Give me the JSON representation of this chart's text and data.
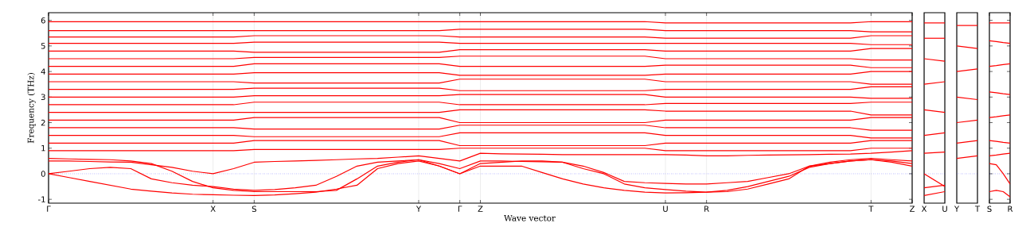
{
  "chart_data": [
    {
      "type": "line",
      "xlabel": "Wave vector",
      "ylabel": "Frequency (THz)",
      "ylim": [
        -1.15,
        6.3
      ],
      "categories": [
        "Γ",
        null,
        null,
        null,
        null,
        null,
        null,
        null,
        "X",
        null,
        "S",
        null,
        null,
        null,
        null,
        null,
        null,
        null,
        "Y",
        null,
        "Γ",
        "Z",
        null,
        null,
        null,
        null,
        null,
        null,
        null,
        null,
        "U",
        null,
        "R",
        null,
        null,
        null,
        null,
        null,
        null,
        null,
        "T",
        null,
        "Z"
      ],
      "yticks": [
        -1,
        0,
        1,
        2,
        3,
        4,
        5,
        6
      ],
      "grid": "x",
      "marker": "none",
      "line_style": "solid",
      "ref_lines": [
        {
          "axis": "y",
          "value": 0,
          "color": "#0000ff",
          "line_style": "dotted"
        }
      ],
      "series": [
        {
          "color": "#ff0000",
          "values": [
            0,
            -0.15,
            -0.3,
            -0.45,
            -0.6,
            -0.68,
            -0.75,
            -0.8,
            -0.82,
            -0.84,
            -0.85,
            -0.83,
            -0.78,
            -0.72,
            -0.6,
            -0.45,
            0.2,
            0.4,
            0.5,
            0.3,
            0,
            0.3,
            0.3,
            0.3,
            0.05,
            -0.2,
            -0.4,
            -0.55,
            -0.65,
            -0.72,
            -0.75,
            -0.74,
            -0.72,
            -0.65,
            -0.5,
            -0.3,
            -0.1,
            0.25,
            0.4,
            0.5,
            0.55,
            0.5,
            0.4
          ]
        },
        {
          "color": "#ff0000",
          "values": [
            0,
            0.1,
            0.2,
            0.25,
            0.2,
            -0.2,
            -0.35,
            -0.45,
            -0.5,
            -0.6,
            -0.65,
            -0.62,
            -0.55,
            -0.45,
            -0.1,
            0.3,
            0.45,
            0.5,
            0.55,
            0.3,
            0,
            0.4,
            0.45,
            0.5,
            0.5,
            0.45,
            0.3,
            0.05,
            -0.3,
            -0.35,
            -0.38,
            -0.4,
            -0.4,
            -0.35,
            -0.3,
            -0.15,
            0,
            0.3,
            0.45,
            0.55,
            0.6,
            0.55,
            0.5
          ]
        },
        {
          "color": "#ff0000",
          "values": [
            0.5,
            0.5,
            0.48,
            0.46,
            0.45,
            0.35,
            0.25,
            0.1,
            0,
            0.2,
            0.45,
            0.48,
            0.5,
            0.52,
            0.55,
            0.58,
            0.6,
            0.65,
            0.7,
            0.6,
            0.5,
            0.8,
            0.78,
            0.77,
            0.76,
            0.75,
            0.75,
            0.75,
            0.75,
            0.75,
            0.75,
            0.73,
            0.7,
            0.7,
            0.72,
            0.73,
            0.74,
            0.75,
            0.76,
            0.77,
            0.8,
            0.85,
            0.9
          ]
        },
        {
          "color": "#ff0000",
          "values": [
            0.6,
            0.58,
            0.56,
            0.55,
            0.5,
            0.4,
            0.1,
            -0.3,
            -0.55,
            -0.65,
            -0.7,
            -0.7,
            -0.7,
            -0.7,
            -0.65,
            -0.2,
            0.3,
            0.45,
            0.55,
            0.4,
            0.2,
            0.5,
            0.5,
            0.48,
            0.47,
            0.45,
            0.2,
            0,
            -0.4,
            -0.55,
            -0.62,
            -0.68,
            -0.72,
            -0.7,
            -0.6,
            -0.4,
            -0.2,
            0.3,
            0.4,
            0.5,
            0.55,
            0.45,
            0.3
          ]
        },
        {
          "color": "#ff0000",
          "values": [
            0.9,
            0.9,
            0.9,
            0.9,
            0.9,
            0.9,
            0.9,
            0.9,
            0.9,
            0.9,
            0.95,
            0.95,
            0.95,
            0.95,
            0.95,
            0.95,
            0.95,
            0.95,
            0.95,
            0.95,
            1.0,
            1.0,
            1.0,
            1.0,
            1.0,
            1.0,
            1.0,
            1.0,
            1.0,
            1.0,
            0.9,
            0.9,
            0.9,
            0.9,
            0.9,
            0.9,
            0.9,
            0.9,
            0.9,
            0.9,
            1.0,
            1.0,
            1.0
          ]
        },
        {
          "color": "#ff0000",
          "values": [
            1.2,
            1.2,
            1.2,
            1.2,
            1.2,
            1.2,
            1.2,
            1.2,
            1.2,
            1.2,
            1.3,
            1.3,
            1.3,
            1.3,
            1.3,
            1.3,
            1.3,
            1.3,
            1.3,
            1.3,
            1.1,
            1.1,
            1.1,
            1.1,
            1.1,
            1.1,
            1.1,
            1.1,
            1.1,
            1.1,
            1.2,
            1.2,
            1.2,
            1.2,
            1.2,
            1.2,
            1.2,
            1.2,
            1.2,
            1.2,
            1.3,
            1.3,
            1.3
          ]
        },
        {
          "color": "#ff0000",
          "values": [
            1.5,
            1.5,
            1.5,
            1.5,
            1.5,
            1.5,
            1.5,
            1.5,
            1.5,
            1.5,
            1.45,
            1.45,
            1.45,
            1.45,
            1.45,
            1.45,
            1.45,
            1.45,
            1.45,
            1.45,
            1.6,
            1.6,
            1.6,
            1.6,
            1.6,
            1.6,
            1.6,
            1.6,
            1.6,
            1.6,
            1.5,
            1.5,
            1.5,
            1.5,
            1.5,
            1.5,
            1.5,
            1.5,
            1.5,
            1.5,
            1.4,
            1.4,
            1.4
          ]
        },
        {
          "color": "#ff0000",
          "values": [
            1.8,
            1.8,
            1.8,
            1.8,
            1.8,
            1.8,
            1.8,
            1.8,
            1.8,
            1.8,
            1.75,
            1.75,
            1.75,
            1.75,
            1.75,
            1.75,
            1.75,
            1.75,
            1.75,
            1.75,
            1.9,
            1.9,
            1.9,
            1.9,
            1.9,
            1.9,
            1.9,
            1.9,
            1.9,
            1.9,
            1.8,
            1.8,
            1.8,
            1.8,
            1.8,
            1.8,
            1.8,
            1.8,
            1.8,
            1.8,
            1.7,
            1.7,
            1.7
          ]
        },
        {
          "color": "#ff0000",
          "values": [
            2.1,
            2.1,
            2.1,
            2.1,
            2.1,
            2.1,
            2.1,
            2.1,
            2.1,
            2.1,
            2.2,
            2.2,
            2.2,
            2.2,
            2.2,
            2.2,
            2.2,
            2.2,
            2.2,
            2.2,
            2.0,
            2.0,
            2.0,
            2.0,
            2.0,
            2.0,
            2.0,
            2.0,
            2.0,
            2.0,
            2.1,
            2.1,
            2.1,
            2.1,
            2.1,
            2.1,
            2.1,
            2.1,
            2.1,
            2.1,
            2.2,
            2.2,
            2.2
          ]
        },
        {
          "color": "#ff0000",
          "values": [
            2.4,
            2.4,
            2.4,
            2.4,
            2.4,
            2.4,
            2.4,
            2.4,
            2.4,
            2.4,
            2.4,
            2.4,
            2.4,
            2.4,
            2.4,
            2.4,
            2.4,
            2.4,
            2.4,
            2.4,
            2.5,
            2.5,
            2.5,
            2.5,
            2.5,
            2.5,
            2.5,
            2.5,
            2.5,
            2.5,
            2.45,
            2.45,
            2.45,
            2.45,
            2.45,
            2.45,
            2.45,
            2.45,
            2.45,
            2.45,
            2.3,
            2.3,
            2.3
          ]
        },
        {
          "color": "#ff0000",
          "values": [
            2.7,
            2.7,
            2.7,
            2.7,
            2.7,
            2.7,
            2.7,
            2.7,
            2.7,
            2.7,
            2.8,
            2.8,
            2.8,
            2.8,
            2.8,
            2.8,
            2.8,
            2.8,
            2.8,
            2.8,
            2.7,
            2.7,
            2.7,
            2.7,
            2.7,
            2.7,
            2.7,
            2.7,
            2.7,
            2.7,
            2.75,
            2.75,
            2.75,
            2.75,
            2.75,
            2.75,
            2.75,
            2.75,
            2.75,
            2.75,
            2.8,
            2.8,
            2.8
          ]
        },
        {
          "color": "#ff0000",
          "values": [
            3.0,
            3.0,
            3.0,
            3.0,
            3.0,
            3.0,
            3.0,
            3.0,
            3.0,
            3.0,
            3.05,
            3.05,
            3.05,
            3.05,
            3.05,
            3.05,
            3.05,
            3.05,
            3.05,
            3.05,
            3.1,
            3.1,
            3.1,
            3.1,
            3.1,
            3.1,
            3.1,
            3.1,
            3.1,
            3.1,
            3.0,
            3.0,
            3.0,
            3.0,
            3.0,
            3.0,
            3.0,
            3.0,
            3.0,
            3.0,
            2.95,
            2.95,
            2.95
          ]
        },
        {
          "color": "#ff0000",
          "values": [
            3.3,
            3.3,
            3.3,
            3.3,
            3.3,
            3.3,
            3.3,
            3.3,
            3.3,
            3.3,
            3.35,
            3.35,
            3.35,
            3.35,
            3.35,
            3.35,
            3.35,
            3.35,
            3.35,
            3.35,
            3.25,
            3.25,
            3.25,
            3.25,
            3.25,
            3.25,
            3.25,
            3.25,
            3.25,
            3.25,
            3.3,
            3.3,
            3.3,
            3.3,
            3.3,
            3.3,
            3.3,
            3.3,
            3.3,
            3.3,
            3.4,
            3.4,
            3.4
          ]
        },
        {
          "color": "#ff0000",
          "values": [
            3.6,
            3.6,
            3.6,
            3.6,
            3.6,
            3.6,
            3.6,
            3.6,
            3.6,
            3.6,
            3.55,
            3.55,
            3.55,
            3.55,
            3.55,
            3.55,
            3.55,
            3.55,
            3.55,
            3.55,
            3.7,
            3.7,
            3.7,
            3.7,
            3.7,
            3.7,
            3.7,
            3.7,
            3.7,
            3.7,
            3.6,
            3.6,
            3.6,
            3.6,
            3.6,
            3.6,
            3.6,
            3.6,
            3.6,
            3.6,
            3.5,
            3.5,
            3.5
          ]
        },
        {
          "color": "#ff0000",
          "values": [
            3.9,
            3.9,
            3.9,
            3.9,
            3.9,
            3.9,
            3.9,
            3.9,
            3.9,
            3.9,
            3.95,
            3.95,
            3.95,
            3.95,
            3.95,
            3.95,
            3.95,
            3.95,
            3.95,
            3.95,
            3.85,
            3.85,
            3.85,
            3.85,
            3.85,
            3.85,
            3.85,
            3.85,
            3.85,
            3.85,
            3.9,
            3.9,
            3.9,
            3.9,
            3.9,
            3.9,
            3.9,
            3.9,
            3.9,
            3.9,
            4.0,
            4.0,
            4.0
          ]
        },
        {
          "color": "#ff0000",
          "values": [
            4.2,
            4.2,
            4.2,
            4.2,
            4.2,
            4.2,
            4.2,
            4.2,
            4.2,
            4.2,
            4.3,
            4.3,
            4.3,
            4.3,
            4.3,
            4.3,
            4.3,
            4.3,
            4.3,
            4.3,
            4.2,
            4.2,
            4.2,
            4.2,
            4.2,
            4.2,
            4.2,
            4.2,
            4.2,
            4.2,
            4.25,
            4.25,
            4.25,
            4.25,
            4.25,
            4.25,
            4.25,
            4.25,
            4.25,
            4.25,
            4.15,
            4.15,
            4.15
          ]
        },
        {
          "color": "#ff0000",
          "values": [
            4.5,
            4.5,
            4.5,
            4.5,
            4.5,
            4.5,
            4.5,
            4.5,
            4.5,
            4.5,
            4.55,
            4.55,
            4.55,
            4.55,
            4.55,
            4.55,
            4.55,
            4.55,
            4.55,
            4.55,
            4.6,
            4.6,
            4.6,
            4.6,
            4.6,
            4.6,
            4.6,
            4.6,
            4.6,
            4.6,
            4.5,
            4.5,
            4.5,
            4.5,
            4.5,
            4.5,
            4.5,
            4.5,
            4.5,
            4.5,
            4.45,
            4.45,
            4.45
          ]
        },
        {
          "color": "#ff0000",
          "values": [
            4.8,
            4.8,
            4.8,
            4.8,
            4.8,
            4.8,
            4.8,
            4.8,
            4.8,
            4.8,
            4.75,
            4.75,
            4.75,
            4.75,
            4.75,
            4.75,
            4.75,
            4.75,
            4.75,
            4.75,
            4.85,
            4.85,
            4.85,
            4.85,
            4.85,
            4.85,
            4.85,
            4.85,
            4.85,
            4.85,
            4.8,
            4.8,
            4.8,
            4.8,
            4.8,
            4.8,
            4.8,
            4.8,
            4.8,
            4.8,
            4.9,
            4.9,
            4.9
          ]
        },
        {
          "color": "#ff0000",
          "values": [
            5.1,
            5.1,
            5.1,
            5.1,
            5.1,
            5.1,
            5.1,
            5.1,
            5.1,
            5.1,
            5.15,
            5.15,
            5.15,
            5.15,
            5.15,
            5.15,
            5.15,
            5.15,
            5.15,
            5.15,
            5.1,
            5.1,
            5.1,
            5.1,
            5.1,
            5.1,
            5.1,
            5.1,
            5.1,
            5.1,
            5.1,
            5.1,
            5.1,
            5.1,
            5.1,
            5.1,
            5.1,
            5.1,
            5.1,
            5.1,
            5.05,
            5.05,
            5.05
          ]
        },
        {
          "color": "#ff0000",
          "values": [
            5.35,
            5.35,
            5.35,
            5.35,
            5.35,
            5.35,
            5.35,
            5.35,
            5.35,
            5.35,
            5.4,
            5.4,
            5.4,
            5.4,
            5.4,
            5.4,
            5.4,
            5.4,
            5.4,
            5.4,
            5.35,
            5.35,
            5.35,
            5.35,
            5.35,
            5.35,
            5.35,
            5.35,
            5.35,
            5.35,
            5.3,
            5.3,
            5.3,
            5.3,
            5.3,
            5.3,
            5.3,
            5.3,
            5.3,
            5.3,
            5.4,
            5.4,
            5.4
          ]
        },
        {
          "color": "#ff0000",
          "values": [
            5.6,
            5.6,
            5.6,
            5.6,
            5.6,
            5.6,
            5.6,
            5.6,
            5.6,
            5.6,
            5.6,
            5.6,
            5.6,
            5.6,
            5.6,
            5.6,
            5.6,
            5.6,
            5.6,
            5.6,
            5.65,
            5.65,
            5.65,
            5.65,
            5.65,
            5.65,
            5.65,
            5.65,
            5.65,
            5.65,
            5.6,
            5.6,
            5.6,
            5.6,
            5.6,
            5.6,
            5.6,
            5.6,
            5.6,
            5.6,
            5.55,
            5.55,
            5.55
          ]
        },
        {
          "color": "#ff0000",
          "values": [
            5.95,
            5.95,
            5.95,
            5.95,
            5.95,
            5.95,
            5.95,
            5.95,
            5.95,
            5.95,
            5.95,
            5.95,
            5.95,
            5.95,
            5.95,
            5.95,
            5.95,
            5.95,
            5.95,
            5.95,
            5.95,
            5.95,
            5.95,
            5.95,
            5.95,
            5.95,
            5.95,
            5.95,
            5.95,
            5.95,
            5.9,
            5.9,
            5.9,
            5.9,
            5.9,
            5.9,
            5.9,
            5.9,
            5.9,
            5.9,
            5.95,
            5.95,
            5.95
          ]
        }
      ]
    },
    {
      "type": "line",
      "ylim": [
        -1.15,
        6.3
      ],
      "categories": [
        "X",
        "U"
      ],
      "tick_labels": "x",
      "marker": "none",
      "line_style": "solid",
      "ref_lines": [
        {
          "axis": "y",
          "value": 0,
          "color": "#0000ff",
          "line_style": "dotted"
        }
      ],
      "series": [
        {
          "color": "#ff0000",
          "values": [
            0,
            -0.5
          ]
        },
        {
          "color": "#ff0000",
          "values": [
            -0.85,
            -0.7
          ]
        },
        {
          "color": "#ff0000",
          "values": [
            -0.55,
            -0.45
          ]
        },
        {
          "color": "#ff0000",
          "values": [
            0.8,
            0.85
          ]
        },
        {
          "color": "#ff0000",
          "values": [
            1.5,
            1.6
          ]
        },
        {
          "color": "#ff0000",
          "values": [
            2.5,
            2.4
          ]
        },
        {
          "color": "#ff0000",
          "values": [
            3.5,
            3.6
          ]
        },
        {
          "color": "#ff0000",
          "values": [
            4.5,
            4.4
          ]
        },
        {
          "color": "#ff0000",
          "values": [
            5.3,
            5.3
          ]
        },
        {
          "color": "#ff0000",
          "values": [
            5.9,
            5.9
          ]
        }
      ]
    },
    {
      "type": "line",
      "ylim": [
        -1.15,
        6.3
      ],
      "categories": [
        "Y",
        "T"
      ],
      "tick_labels": "x",
      "marker": "none",
      "line_style": "solid",
      "ref_lines": [
        {
          "axis": "y",
          "value": 0,
          "color": "#0000ff",
          "line_style": "dotted"
        }
      ],
      "series": [
        {
          "color": "#ff0000",
          "values": [
            0.6,
            0.7
          ]
        },
        {
          "color": "#ff0000",
          "values": [
            1.2,
            1.3
          ]
        },
        {
          "color": "#ff0000",
          "values": [
            2.0,
            2.1
          ]
        },
        {
          "color": "#ff0000",
          "values": [
            3.0,
            2.9
          ]
        },
        {
          "color": "#ff0000",
          "values": [
            4.0,
            4.1
          ]
        },
        {
          "color": "#ff0000",
          "values": [
            5.0,
            4.9
          ]
        },
        {
          "color": "#ff0000",
          "values": [
            5.8,
            5.8
          ]
        }
      ]
    },
    {
      "type": "line",
      "ylim": [
        -1.15,
        6.3
      ],
      "categories": [
        "S",
        null,
        null,
        "R"
      ],
      "yticks": [
        -1,
        0,
        1,
        2,
        3,
        4,
        5,
        6
      ],
      "tick_labels": "x",
      "marker": "none",
      "line_style": "solid",
      "ref_lines": [
        {
          "axis": "y",
          "value": 0,
          "color": "#0000ff",
          "line_style": "dotted"
        }
      ],
      "series": [
        {
          "color": "#ff0000",
          "values": [
            0.4,
            0.35,
            0.0,
            -0.4
          ]
        },
        {
          "color": "#ff0000",
          "values": [
            -0.7,
            -0.65,
            -0.7,
            -0.9
          ]
        },
        {
          "color": "#ff0000",
          "values": [
            0.7,
            0.73,
            0.77,
            0.8
          ]
        },
        {
          "color": "#ff0000",
          "values": [
            1.3,
            1.27,
            1.23,
            1.2
          ]
        },
        {
          "color": "#ff0000",
          "values": [
            2.2,
            2.23,
            2.27,
            2.3
          ]
        },
        {
          "color": "#ff0000",
          "values": [
            3.2,
            3.17,
            3.13,
            3.1
          ]
        },
        {
          "color": "#ff0000",
          "values": [
            4.2,
            4.23,
            4.27,
            4.3
          ]
        },
        {
          "color": "#ff0000",
          "values": [
            5.2,
            5.17,
            5.13,
            5.1
          ]
        },
        {
          "color": "#ff0000",
          "values": [
            5.9,
            5.9,
            5.9,
            5.9
          ]
        }
      ]
    }
  ]
}
